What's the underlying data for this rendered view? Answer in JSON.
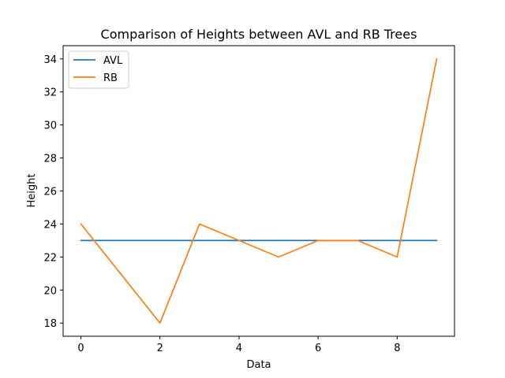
{
  "chart_data": {
    "type": "line",
    "title": "Comparison of Heights between AVL and RB Trees",
    "xlabel": "Data",
    "ylabel": "Height",
    "x": [
      0,
      1,
      2,
      3,
      4,
      5,
      6,
      7,
      8,
      9
    ],
    "xlim": [
      -0.45,
      9.45
    ],
    "ylim": [
      17.2,
      34.8
    ],
    "xticks": [
      0,
      2,
      4,
      6,
      8
    ],
    "yticks": [
      18,
      20,
      22,
      24,
      26,
      28,
      30,
      32,
      34
    ],
    "grid": false,
    "legend_position": "top-left",
    "series": [
      {
        "name": "AVL",
        "color": "#1f77b4",
        "values": [
          23,
          23,
          23,
          23,
          23,
          23,
          23,
          23,
          23,
          23
        ]
      },
      {
        "name": "RB",
        "color": "#ff7f0e",
        "values": [
          24,
          21,
          18,
          24,
          23,
          22,
          23,
          23,
          22,
          34
        ]
      }
    ]
  }
}
